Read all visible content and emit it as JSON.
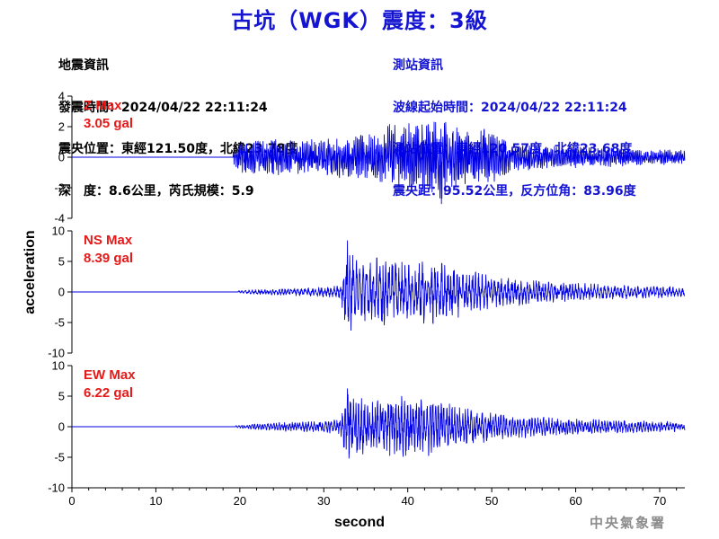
{
  "title": "古坑（WGK）震度：3級",
  "earthquake_info": {
    "heading": "地震資訊",
    "origin_time": "發震時間：2024/04/22 22:11:24",
    "epicenter": "震央位置：東經121.50度，北緯23.78度",
    "depth_magnitude": "深　度：8.6公里，芮氏規模：5.9"
  },
  "station_info": {
    "heading": "測站資訊",
    "wave_start": "波線起始時間：2024/04/22 22:11:24",
    "location": "測站位置：東經120.57度，北緯23.68度",
    "distance": "震央距：95.52公里，反方位角：83.96度"
  },
  "agency": "中央氣象署",
  "colors": {
    "trace": "#0000e6",
    "title": "#1414d2",
    "label": "#e61919",
    "axis": "#000000"
  },
  "chart_data": {
    "type": "line",
    "xlabel": "second",
    "ylabel": "acceleration",
    "xlim": [
      0,
      73
    ],
    "x_ticks": [
      0,
      10,
      20,
      30,
      40,
      50,
      60,
      70
    ],
    "series": [
      {
        "name": "Z",
        "label": "Z Max",
        "max_label": "3.05 gal",
        "peak": 3.05,
        "ylim": [
          -4,
          4
        ],
        "y_ticks": [
          4,
          2,
          0,
          -2,
          -4
        ],
        "onset": 19.2,
        "envelope": [
          [
            19.2,
            0.4
          ],
          [
            20,
            1.0
          ],
          [
            22,
            1.2
          ],
          [
            26,
            1.2
          ],
          [
            29,
            1.2
          ],
          [
            33,
            1.4
          ],
          [
            36,
            1.6
          ],
          [
            38,
            2.2
          ],
          [
            42,
            2.4
          ],
          [
            44,
            3.05
          ],
          [
            46,
            2.0
          ],
          [
            48,
            1.6
          ],
          [
            50,
            2.2
          ],
          [
            52,
            1.0
          ],
          [
            56,
            0.8
          ],
          [
            60,
            0.7
          ],
          [
            65,
            0.6
          ],
          [
            70,
            0.5
          ],
          [
            73,
            0.5
          ]
        ],
        "mean_period": 0.18
      },
      {
        "name": "NS",
        "label": "NS Max",
        "max_label": "8.39 gal",
        "peak": 8.39,
        "ylim": [
          -10,
          10
        ],
        "y_ticks": [
          10,
          5,
          0,
          -5,
          -10
        ],
        "onset": 19.8,
        "envelope": [
          [
            19.8,
            0.2
          ],
          [
            22,
            0.4
          ],
          [
            26,
            0.6
          ],
          [
            30,
            0.8
          ],
          [
            32,
            1.2
          ],
          [
            32.8,
            8.39
          ],
          [
            34,
            5.5
          ],
          [
            36,
            6.0
          ],
          [
            39,
            5.5
          ],
          [
            41,
            4.8
          ],
          [
            43,
            5.6
          ],
          [
            45,
            4.8
          ],
          [
            47,
            3.6
          ],
          [
            50,
            2.8
          ],
          [
            53,
            2.4
          ],
          [
            56,
            2.0
          ],
          [
            60,
            1.5
          ],
          [
            65,
            1.2
          ],
          [
            70,
            1.0
          ],
          [
            73,
            0.8
          ]
        ],
        "mean_period": 0.35
      },
      {
        "name": "EW",
        "label": "EW Max",
        "max_label": "6.22 gal",
        "peak": 6.22,
        "ylim": [
          -10,
          10
        ],
        "y_ticks": [
          10,
          5,
          0,
          -5,
          -10
        ],
        "onset": 19.5,
        "envelope": [
          [
            19.5,
            0.2
          ],
          [
            22,
            0.5
          ],
          [
            26,
            0.8
          ],
          [
            30,
            1.0
          ],
          [
            32,
            1.4
          ],
          [
            32.8,
            6.22
          ],
          [
            35,
            4.5
          ],
          [
            38,
            5.0
          ],
          [
            40,
            5.2
          ],
          [
            42,
            5.0
          ],
          [
            44,
            4.2
          ],
          [
            46,
            3.4
          ],
          [
            50,
            2.4
          ],
          [
            53,
            2.0
          ],
          [
            56,
            1.6
          ],
          [
            60,
            1.3
          ],
          [
            65,
            1.1
          ],
          [
            70,
            0.9
          ],
          [
            73,
            0.8
          ]
        ],
        "mean_period": 0.3
      }
    ]
  }
}
